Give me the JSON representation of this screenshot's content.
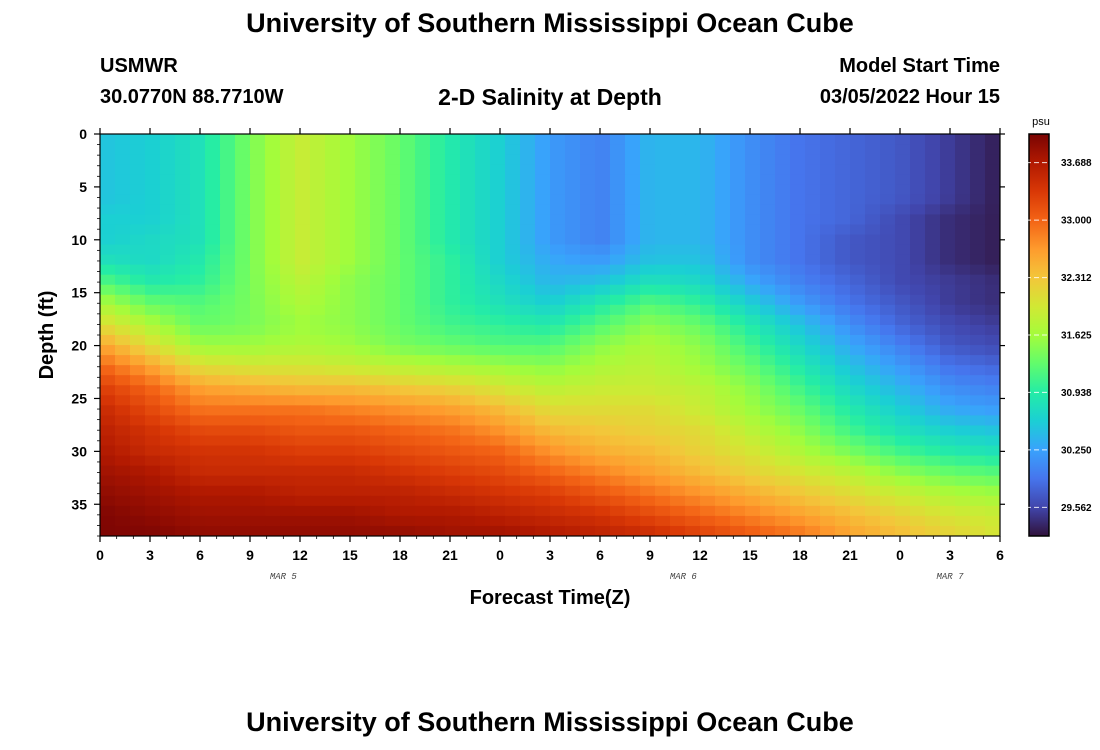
{
  "header": {
    "title": "University of Southern Mississippi Ocean Cube",
    "station": "USMWR",
    "coords": "30.0770N  88.7710W",
    "subtitle": "2-D Salinity at Depth",
    "start_label": "Model Start Time",
    "start_value": "03/05/2022 Hour 15"
  },
  "footer": {
    "title": "University of Southern Mississippi Ocean Cube"
  },
  "chart_data": {
    "type": "heatmap",
    "title": "2-D Salinity at Depth",
    "xlabel": "Forecast Time(Z)",
    "ylabel": "Depth (ft)",
    "x_tick_labels": [
      "0",
      "3",
      "6",
      "9",
      "12",
      "15",
      "18",
      "21",
      "0",
      "3",
      "6",
      "9",
      "12",
      "15",
      "18",
      "21",
      "0",
      "3",
      "6"
    ],
    "x_range_hours": [
      0,
      54
    ],
    "date_labels": [
      {
        "label": "MAR 5",
        "hour": 11
      },
      {
        "label": "MAR 6",
        "hour": 35
      },
      {
        "label": "MAR 7",
        "hour": 51
      }
    ],
    "y_tick_labels": [
      "0",
      "5",
      "10",
      "15",
      "20",
      "25",
      "30",
      "35"
    ],
    "y_range": [
      0,
      38
    ],
    "y_inverted": true,
    "colorbar": {
      "unit": "psu",
      "ticks": [
        "33.688",
        "33.000",
        "32.312",
        "31.625",
        "30.938",
        "30.250",
        "29.562"
      ],
      "min": 29.22,
      "max": 34.03,
      "colors": [
        "#30123b",
        "#4145ab",
        "#4675ed",
        "#39a2fc",
        "#1bcfd4",
        "#24eca6",
        "#61fc6c",
        "#a4fc3b",
        "#d1e834",
        "#f3c63a",
        "#fe9b2d",
        "#f36315",
        "#d93806",
        "#b11901",
        "#7a0403"
      ]
    },
    "salinity_psu": {
      "description": "rows = depth (ft) 0,2,4,...,38; columns = forecast hour 0,3,6,...,54",
      "depths": [
        0,
        2,
        4,
        6,
        8,
        10,
        12,
        14,
        16,
        18,
        20,
        22,
        24,
        26,
        28,
        30,
        32,
        34,
        36,
        38
      ],
      "hours": [
        0,
        3,
        6,
        9,
        12,
        15,
        18,
        21,
        24,
        27,
        30,
        33,
        36,
        39,
        42,
        45,
        48,
        51,
        54
      ],
      "values": [
        [
          30.5,
          30.6,
          30.8,
          31.4,
          31.9,
          31.6,
          31.3,
          30.9,
          30.6,
          30.2,
          30.0,
          30.4,
          30.4,
          30.1,
          29.9,
          29.8,
          29.7,
          29.5,
          29.3
        ],
        [
          30.5,
          30.6,
          30.8,
          31.4,
          31.9,
          31.6,
          31.3,
          30.9,
          30.6,
          30.2,
          30.0,
          30.4,
          30.4,
          30.1,
          29.9,
          29.8,
          29.7,
          29.5,
          29.3
        ],
        [
          30.5,
          30.6,
          30.8,
          31.4,
          31.9,
          31.6,
          31.3,
          30.9,
          30.6,
          30.2,
          30.0,
          30.4,
          30.4,
          30.1,
          29.9,
          29.8,
          29.7,
          29.5,
          29.3
        ],
        [
          30.5,
          30.6,
          30.8,
          31.4,
          31.9,
          31.6,
          31.3,
          30.9,
          30.6,
          30.2,
          30.0,
          30.4,
          30.4,
          30.1,
          29.9,
          29.8,
          29.7,
          29.5,
          29.3
        ],
        [
          30.6,
          30.6,
          30.8,
          31.4,
          31.9,
          31.6,
          31.3,
          30.9,
          30.6,
          30.2,
          30.0,
          30.4,
          30.4,
          30.1,
          29.9,
          29.8,
          29.6,
          29.4,
          29.3
        ],
        [
          30.6,
          30.7,
          30.8,
          31.4,
          31.9,
          31.6,
          31.3,
          30.9,
          30.6,
          30.2,
          30.0,
          30.4,
          30.4,
          30.1,
          29.9,
          29.7,
          29.6,
          29.4,
          29.3
        ],
        [
          30.8,
          30.7,
          30.9,
          31.4,
          31.9,
          31.6,
          31.3,
          31.0,
          30.6,
          30.3,
          30.2,
          30.5,
          30.5,
          30.1,
          29.9,
          29.7,
          29.6,
          29.4,
          29.3
        ],
        [
          31.2,
          30.9,
          31.0,
          31.4,
          31.8,
          31.5,
          31.3,
          31.0,
          30.7,
          30.4,
          30.5,
          30.8,
          30.7,
          30.3,
          30.0,
          29.8,
          29.6,
          29.5,
          29.4
        ],
        [
          31.7,
          31.3,
          31.2,
          31.4,
          31.7,
          31.5,
          31.3,
          31.0,
          30.8,
          30.6,
          30.9,
          31.2,
          31.0,
          30.6,
          30.2,
          29.9,
          29.7,
          29.5,
          29.4
        ],
        [
          32.1,
          31.7,
          31.3,
          31.4,
          31.6,
          31.5,
          31.3,
          31.1,
          31.0,
          30.9,
          31.2,
          31.5,
          31.3,
          30.9,
          30.5,
          30.1,
          29.8,
          29.6,
          29.5
        ],
        [
          32.6,
          32.1,
          31.6,
          31.6,
          31.7,
          31.6,
          31.4,
          31.3,
          31.2,
          31.2,
          31.5,
          31.7,
          31.5,
          31.1,
          30.7,
          30.3,
          30.0,
          29.7,
          29.6
        ],
        [
          33.0,
          32.6,
          32.1,
          32.0,
          32.0,
          31.9,
          31.8,
          31.7,
          31.6,
          31.5,
          31.7,
          31.8,
          31.6,
          31.3,
          30.9,
          30.5,
          30.2,
          29.9,
          29.8
        ],
        [
          33.3,
          33.0,
          32.6,
          32.5,
          32.4,
          32.4,
          32.3,
          32.2,
          32.0,
          31.8,
          31.9,
          31.9,
          31.8,
          31.5,
          31.1,
          30.7,
          30.4,
          30.1,
          30.0
        ],
        [
          33.5,
          33.2,
          32.9,
          32.9,
          32.9,
          32.8,
          32.7,
          32.6,
          32.4,
          32.1,
          32.1,
          32.1,
          31.9,
          31.6,
          31.3,
          30.9,
          30.6,
          30.3,
          30.2
        ],
        [
          33.6,
          33.4,
          33.2,
          33.2,
          33.1,
          33.1,
          33.0,
          32.9,
          32.7,
          32.4,
          32.3,
          32.2,
          32.1,
          31.8,
          31.5,
          31.1,
          30.8,
          30.6,
          30.5
        ],
        [
          33.7,
          33.5,
          33.4,
          33.4,
          33.3,
          33.3,
          33.2,
          33.1,
          33.0,
          32.7,
          32.5,
          32.4,
          32.2,
          32.0,
          31.7,
          31.4,
          31.1,
          30.9,
          30.8
        ],
        [
          33.8,
          33.7,
          33.5,
          33.5,
          33.5,
          33.5,
          33.4,
          33.3,
          33.2,
          33.0,
          32.8,
          32.6,
          32.4,
          32.2,
          32.0,
          31.8,
          31.5,
          31.3,
          31.2
        ],
        [
          33.9,
          33.8,
          33.7,
          33.7,
          33.6,
          33.6,
          33.6,
          33.5,
          33.4,
          33.3,
          33.1,
          32.9,
          32.7,
          32.5,
          32.3,
          32.1,
          31.9,
          31.7,
          31.6
        ],
        [
          34.0,
          33.9,
          33.8,
          33.8,
          33.8,
          33.8,
          33.7,
          33.7,
          33.6,
          33.5,
          33.4,
          33.2,
          33.0,
          32.8,
          32.6,
          32.4,
          32.2,
          32.0,
          31.9
        ],
        [
          34.0,
          34.0,
          33.9,
          33.9,
          33.9,
          33.9,
          33.9,
          33.8,
          33.8,
          33.7,
          33.6,
          33.5,
          33.3,
          33.1,
          32.9,
          32.6,
          32.4,
          32.2,
          32.0
        ]
      ]
    }
  }
}
